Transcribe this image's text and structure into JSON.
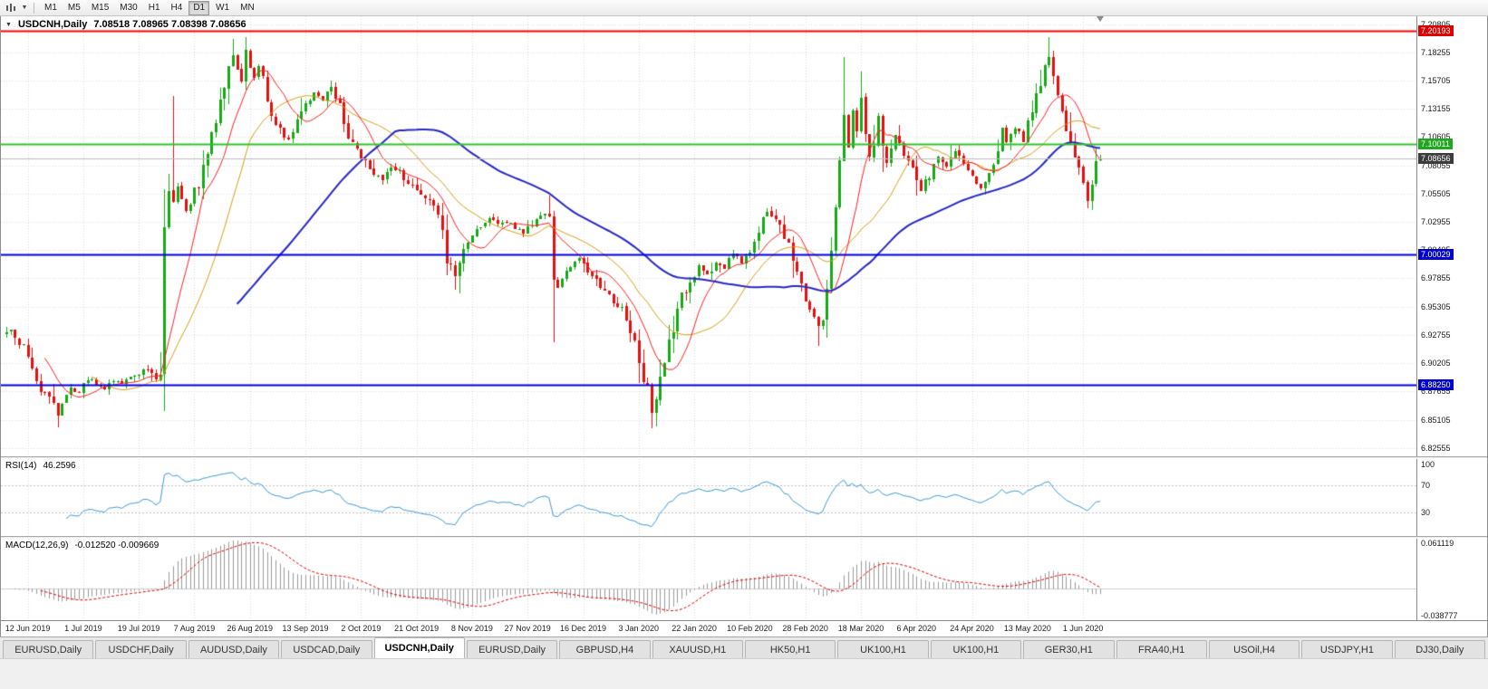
{
  "toolbar": {
    "timeframes": [
      "M1",
      "M5",
      "M15",
      "M30",
      "H1",
      "H4",
      "D1",
      "W1",
      "MN"
    ],
    "active": "D1"
  },
  "chart": {
    "symbol": "USDCNH,Daily",
    "ohlc": "7.08518 7.08965 7.08398 7.08656"
  },
  "price_axis": {
    "ticks": [
      "7.20805",
      "7.18255",
      "7.15705",
      "7.13155",
      "7.10605",
      "7.08055",
      "7.05505",
      "7.02955",
      "7.00405",
      "6.97855",
      "6.95305",
      "6.92755",
      "6.90205",
      "6.87655",
      "6.85105",
      "6.82555"
    ]
  },
  "rsi": {
    "label": "RSI(14)",
    "value": "46.2596",
    "axis_labels": [
      "100",
      "70",
      "30"
    ],
    "axis_values": [
      100,
      70,
      30
    ],
    "guide_levels": [
      70,
      30
    ],
    "view": [
      -4,
      108
    ],
    "line_color": "#3E9BD8",
    "period": 14
  },
  "macd": {
    "label": "MACD(12,26,9)",
    "value": "-0.012520 -0.009669",
    "axis_labels": [
      "0.061119",
      "-0.038777"
    ],
    "axis_values": [
      0.061119,
      -0.038777
    ],
    "view": [
      -0.042,
      0.065
    ],
    "hist_color": "#9A9A9A",
    "signal_color": "#E00000",
    "fast": 12,
    "slow": 26,
    "signal": 9
  },
  "dates": [
    "12 Jun 2019",
    "1 Jul 2019",
    "19 Jul 2019",
    "7 Aug 2019",
    "26 Aug 2019",
    "13 Sep 2019",
    "2 Oct 2019",
    "21 Oct 2019",
    "8 Nov 2019",
    "27 Nov 2019",
    "16 Dec 2019",
    "3 Jan 2020",
    "22 Jan 2020",
    "10 Feb 2020",
    "28 Feb 2020",
    "18 Mar 2020",
    "6 Apr 2020",
    "24 Apr 2020",
    "13 May 2020",
    "1 Jun 2020"
  ],
  "tabs": {
    "active_index": 4,
    "items": [
      "EURUSD,Daily",
      "USDCHF,Daily",
      "AUDUSD,Daily",
      "USDCAD,Daily",
      "USDCNH,Daily",
      "EURUSD,Daily",
      "GBPUSD,H4",
      "XAUUSD,H1",
      "HK50,H1",
      "UK100,H1",
      "UK100,H1",
      "GER30,H1",
      "FRA40,H1",
      "USOil,H4",
      "USDJPY,H1",
      "DJ30,Daily"
    ],
    "active_label": "USDCNH,Daily"
  },
  "chart_data": {
    "type": "candlestick",
    "symbol": "USDCNH",
    "timeframe": "Daily",
    "days": 257,
    "x_labels": [
      "12 Jun 2019",
      "1 Jul 2019",
      "19 Jul 2019",
      "7 Aug 2019",
      "26 Aug 2019",
      "13 Sep 2019",
      "2 Oct 2019",
      "21 Oct 2019",
      "8 Nov 2019",
      "27 Nov 2019",
      "16 Dec 2019",
      "3 Jan 2020",
      "22 Jan 2020",
      "10 Feb 2020",
      "28 Feb 2020",
      "18 Mar 2020",
      "6 Apr 2020",
      "24 Apr 2020",
      "13 May 2020",
      "1 Jun 2020"
    ],
    "x_label_days": [
      5,
      18,
      31,
      44,
      57,
      70,
      83,
      96,
      109,
      122,
      135,
      148,
      161,
      174,
      187,
      200,
      213,
      226,
      239,
      252
    ],
    "price_view": {
      "max": 7.215,
      "min": 6.818
    },
    "colors": {
      "up": "#18A818",
      "down": "#E41010",
      "grid": "#DCDCDC",
      "bg": "#FFFFFF"
    },
    "anchors": [
      [
        0,
        6.93
      ],
      [
        1,
        6.934
      ],
      [
        2,
        6.924
      ],
      [
        4,
        6.916
      ],
      [
        6,
        6.9
      ],
      [
        8,
        6.878
      ],
      [
        10,
        6.87
      ],
      [
        12,
        6.856
      ],
      [
        13,
        6.865
      ],
      [
        15,
        6.88
      ],
      [
        17,
        6.875
      ],
      [
        19,
        6.888
      ],
      [
        21,
        6.882
      ],
      [
        23,
        6.879
      ],
      [
        25,
        6.887
      ],
      [
        27,
        6.883
      ],
      [
        29,
        6.89
      ],
      [
        31,
        6.892
      ],
      [
        33,
        6.898
      ],
      [
        35,
        6.886
      ],
      [
        36,
        6.892
      ],
      [
        37,
        7.022
      ],
      [
        38,
        7.056
      ],
      [
        39,
        7.046
      ],
      [
        40,
        7.06
      ],
      [
        41,
        7.052
      ],
      [
        42,
        7.04
      ],
      [
        43,
        7.048
      ],
      [
        44,
        7.062
      ],
      [
        45,
        7.058
      ],
      [
        46,
        7.075
      ],
      [
        47,
        7.092
      ],
      [
        48,
        7.105
      ],
      [
        49,
        7.12
      ],
      [
        50,
        7.138
      ],
      [
        51,
        7.152
      ],
      [
        52,
        7.165
      ],
      [
        53,
        7.178
      ],
      [
        54,
        7.168
      ],
      [
        55,
        7.158
      ],
      [
        56,
        7.183
      ],
      [
        57,
        7.172
      ],
      [
        58,
        7.158
      ],
      [
        59,
        7.168
      ],
      [
        60,
        7.162
      ],
      [
        61,
        7.14
      ],
      [
        62,
        7.128
      ],
      [
        63,
        7.118
      ],
      [
        64,
        7.112
      ],
      [
        66,
        7.104
      ],
      [
        68,
        7.12
      ],
      [
        70,
        7.136
      ],
      [
        72,
        7.146
      ],
      [
        74,
        7.138
      ],
      [
        76,
        7.15
      ],
      [
        78,
        7.132
      ],
      [
        80,
        7.108
      ],
      [
        82,
        7.094
      ],
      [
        84,
        7.084
      ],
      [
        86,
        7.074
      ],
      [
        88,
        7.068
      ],
      [
        90,
        7.08
      ],
      [
        92,
        7.074
      ],
      [
        94,
        7.064
      ],
      [
        96,
        7.058
      ],
      [
        98,
        7.052
      ],
      [
        100,
        7.044
      ],
      [
        102,
        7.018
      ],
      [
        103,
        6.996
      ],
      [
        104,
        6.988
      ],
      [
        105,
        6.982
      ],
      [
        106,
        6.994
      ],
      [
        107,
        7.002
      ],
      [
        109,
        7.016
      ],
      [
        111,
        7.026
      ],
      [
        113,
        7.032
      ],
      [
        115,
        7.028
      ],
      [
        117,
        7.03
      ],
      [
        119,
        7.024
      ],
      [
        121,
        7.02
      ],
      [
        123,
        7.028
      ],
      [
        125,
        7.034
      ],
      [
        127,
        7.04
      ],
      [
        128,
        6.982
      ],
      [
        129,
        6.972
      ],
      [
        130,
        6.978
      ],
      [
        132,
        6.99
      ],
      [
        134,
        6.996
      ],
      [
        136,
        6.986
      ],
      [
        138,
        6.976
      ],
      [
        140,
        6.966
      ],
      [
        142,
        6.958
      ],
      [
        144,
        6.95
      ],
      [
        146,
        6.932
      ],
      [
        148,
        6.906
      ],
      [
        150,
        6.876
      ],
      [
        151,
        6.86
      ],
      [
        152,
        6.868
      ],
      [
        154,
        6.9
      ],
      [
        156,
        6.936
      ],
      [
        158,
        6.962
      ],
      [
        160,
        6.974
      ],
      [
        162,
        6.99
      ],
      [
        164,
        6.982
      ],
      [
        166,
        6.994
      ],
      [
        168,
        6.988
      ],
      [
        170,
        7.0
      ],
      [
        172,
        6.992
      ],
      [
        174,
        7.002
      ],
      [
        176,
        7.018
      ],
      [
        178,
        7.04
      ],
      [
        180,
        7.034
      ],
      [
        182,
        7.018
      ],
      [
        184,
        6.996
      ],
      [
        186,
        6.972
      ],
      [
        188,
        6.95
      ],
      [
        190,
        6.934
      ],
      [
        191,
        6.944
      ],
      [
        192,
        6.966
      ],
      [
        193,
        7.0
      ],
      [
        194,
        7.044
      ],
      [
        195,
        7.088
      ],
      [
        196,
        7.124
      ],
      [
        197,
        7.098
      ],
      [
        198,
        7.128
      ],
      [
        199,
        7.108
      ],
      [
        200,
        7.14
      ],
      [
        201,
        7.112
      ],
      [
        202,
        7.088
      ],
      [
        203,
        7.104
      ],
      [
        204,
        7.126
      ],
      [
        205,
        7.098
      ],
      [
        206,
        7.082
      ],
      [
        207,
        7.094
      ],
      [
        208,
        7.108
      ],
      [
        210,
        7.092
      ],
      [
        212,
        7.076
      ],
      [
        214,
        7.058
      ],
      [
        216,
        7.072
      ],
      [
        218,
        7.088
      ],
      [
        220,
        7.078
      ],
      [
        222,
        7.092
      ],
      [
        224,
        7.082
      ],
      [
        226,
        7.068
      ],
      [
        228,
        7.06
      ],
      [
        230,
        7.076
      ],
      [
        232,
        7.094
      ],
      [
        233,
        7.112
      ],
      [
        234,
        7.102
      ],
      [
        236,
        7.114
      ],
      [
        238,
        7.104
      ],
      [
        240,
        7.128
      ],
      [
        242,
        7.152
      ],
      [
        243,
        7.172
      ],
      [
        244,
        7.178
      ],
      [
        245,
        7.162
      ],
      [
        246,
        7.138
      ],
      [
        248,
        7.112
      ],
      [
        250,
        7.086
      ],
      [
        252,
        7.062
      ],
      [
        253,
        7.048
      ],
      [
        254,
        7.068
      ],
      [
        255,
        7.08
      ],
      [
        256,
        7.08656
      ]
    ],
    "wick_events": [
      {
        "day": 12,
        "low": 6.844
      },
      {
        "day": 39,
        "high": 7.143
      },
      {
        "day": 53,
        "high": 7.1945
      },
      {
        "day": 56,
        "high": 7.1964
      },
      {
        "day": 76,
        "high": 7.157
      },
      {
        "day": 105,
        "low": 6.968
      },
      {
        "day": 128,
        "low": 6.921
      },
      {
        "day": 151,
        "low": 6.843
      },
      {
        "day": 190,
        "low": 6.918
      },
      {
        "day": 196,
        "high": 7.178
      },
      {
        "day": 200,
        "high": 7.165
      },
      {
        "day": 244,
        "high": 7.1962
      },
      {
        "day": 253,
        "low": 7.042
      }
    ],
    "last_candle": {
      "open": 7.08518,
      "high": 7.08965,
      "low": 7.08398,
      "close": 7.08656
    },
    "moving_averages": [
      {
        "period": 10,
        "color": "#FF2020",
        "width": 1
      },
      {
        "period": 21,
        "color": "#D8A018",
        "width": 1
      },
      {
        "period": 55,
        "color": "#2828C8",
        "width": 2
      }
    ],
    "levels": [
      {
        "price": 7.20193,
        "label": "7.20193",
        "line_color": "#FF0000",
        "tag_color": "#E00000",
        "width": 2
      },
      {
        "price": 7.10011,
        "label": "7.10011",
        "line_color": "#2DC52D",
        "tag_color": "#1FA81F",
        "width": 2
      },
      {
        "price": 7.08656,
        "label": "7.08656",
        "line_color": "#BDBDBD",
        "tag_color": "#3C3C3C",
        "width": 1
      },
      {
        "price": 7.00029,
        "label": "7.00029",
        "line_color": "#0000E8",
        "tag_color": "#0000D0",
        "width": 2
      },
      {
        "price": 6.8825,
        "label": "6.88250",
        "line_color": "#0000E8",
        "tag_color": "#0000D0",
        "width": 2
      }
    ]
  }
}
